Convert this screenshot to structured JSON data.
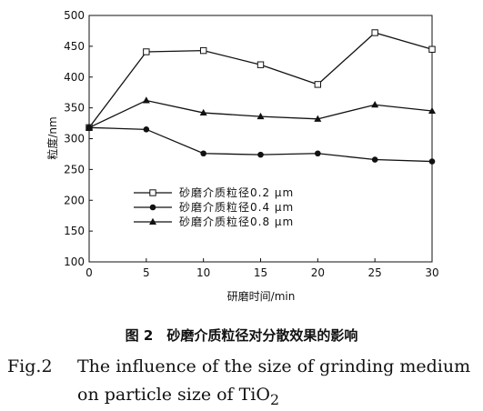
{
  "chart_data": {
    "type": "line",
    "xlabel": "研磨时间/min",
    "ylabel": "粒度/nm",
    "xlim": [
      0,
      30
    ],
    "ylim": [
      100,
      500
    ],
    "xticks": [
      0,
      5,
      10,
      15,
      20,
      25,
      30
    ],
    "yticks": [
      100,
      150,
      200,
      250,
      300,
      350,
      400,
      450,
      500
    ],
    "x": [
      0,
      5,
      10,
      15,
      20,
      25,
      30
    ],
    "series": [
      {
        "name": "砂磨介质粒径0.2 μm",
        "marker": "open-square",
        "values": [
          318,
          441,
          443,
          420,
          388,
          472,
          445
        ]
      },
      {
        "name": "砂磨介质粒径0.4 μm",
        "marker": "filled-circle",
        "values": [
          318,
          315,
          276,
          274,
          276,
          266,
          263
        ]
      },
      {
        "name": "砂磨介质粒径0.8 μm",
        "marker": "filled-triangle",
        "values": [
          318,
          362,
          342,
          336,
          332,
          355,
          345
        ]
      }
    ],
    "legend_position": "lower-left",
    "grid": false
  },
  "caption": {
    "cn": "图 2　砂磨介质粒径对分散效果的影响",
    "en_fig": "Fig.2",
    "en_line1": "The influence of the size of grinding medium",
    "en_line2_prefix": "on particle size of TiO",
    "en_line2_sub": "2"
  }
}
